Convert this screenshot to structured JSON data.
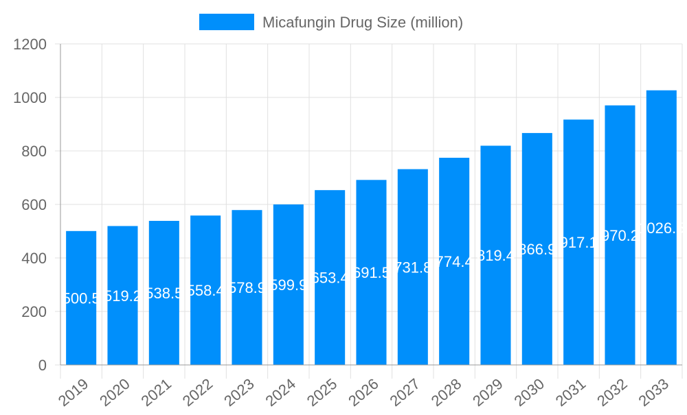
{
  "chart_data": {
    "type": "bar",
    "title": "",
    "xlabel": "",
    "ylabel": "",
    "ylim": [
      0,
      1200
    ],
    "yticks": [
      0,
      200,
      400,
      600,
      800,
      1000,
      1200
    ],
    "grid": true,
    "legend_position": "top",
    "categories": [
      "2019",
      "2020",
      "2021",
      "2022",
      "2023",
      "2024",
      "2025",
      "2026",
      "2027",
      "2028",
      "2029",
      "2030",
      "2031",
      "2032",
      "2033"
    ],
    "series": [
      {
        "name": "Micafungin Drug Size (million)",
        "color": "#008ffb",
        "values": [
          500.5,
          519.2,
          538.5,
          558.4,
          578.9,
          599.9,
          653.4,
          691.5,
          731.8,
          774.4,
          819.4,
          866.9,
          917.1,
          970.2,
          1026.5
        ]
      }
    ]
  }
}
